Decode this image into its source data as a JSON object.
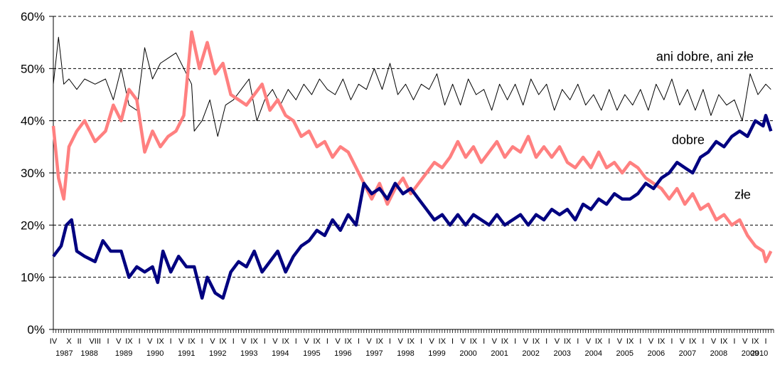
{
  "chart_data": {
    "type": "line",
    "title": "",
    "xlabel": "",
    "ylabel": "",
    "ylim": [
      0,
      60
    ],
    "yticks": [
      "0%",
      "10%",
      "20%",
      "30%",
      "40%",
      "50%",
      "60%"
    ],
    "grid": "horizontal-dashed",
    "x_month_labels": [
      "IV",
      "X",
      "II",
      "VIII",
      "I",
      "V",
      "IX",
      "I",
      "V",
      "IX",
      "I",
      "V",
      "IX",
      "I",
      "V",
      "IX",
      "I",
      "V",
      "IX",
      "I",
      "V",
      "IX",
      "I",
      "V",
      "IX",
      "I",
      "V",
      "IX",
      "I",
      "V",
      "IX",
      "I",
      "V",
      "IX",
      "I",
      "V",
      "IX",
      "I",
      "V",
      "IX",
      "I",
      "V",
      "IX",
      "I",
      "V",
      "IX",
      "I",
      "V",
      "IX",
      "I",
      "V",
      "IX",
      "I",
      "V",
      "IX",
      "I",
      "V",
      "IX",
      "I",
      "V",
      "IX",
      "I",
      "V",
      "IX",
      "I",
      "V",
      "IX",
      "I",
      "V",
      "IX",
      "I"
    ],
    "x_year_labels": [
      "1987",
      "1988",
      "1989",
      "1990",
      "1991",
      "1992",
      "1993",
      "1994",
      "1995",
      "1996",
      "1997",
      "1998",
      "1999",
      "2000",
      "2001",
      "2002",
      "2003",
      "2004",
      "2005",
      "2006",
      "2007",
      "2008",
      "2009",
      "2010"
    ],
    "series": [
      {
        "name": "ani dobre, ani złe",
        "color": "#000000",
        "points": [
          [
            "1987-04",
            47
          ],
          [
            "1987-06",
            56
          ],
          [
            "1987-08",
            47
          ],
          [
            "1987-10",
            48
          ],
          [
            "1988-01",
            46
          ],
          [
            "1988-04",
            48
          ],
          [
            "1988-08",
            47
          ],
          [
            "1988-12",
            48
          ],
          [
            "1989-03",
            44
          ],
          [
            "1989-06",
            50
          ],
          [
            "1989-09",
            43
          ],
          [
            "1989-12",
            42
          ],
          [
            "1990-03",
            54
          ],
          [
            "1990-06",
            48
          ],
          [
            "1990-09",
            51
          ],
          [
            "1990-12",
            52
          ],
          [
            "1991-03",
            53
          ],
          [
            "1991-06",
            50
          ],
          [
            "1991-09",
            47
          ],
          [
            "1991-10",
            38
          ],
          [
            "1992-01",
            40
          ],
          [
            "1992-04",
            44
          ],
          [
            "1992-07",
            37
          ],
          [
            "1992-10",
            43
          ],
          [
            "1993-01",
            44
          ],
          [
            "1993-04",
            46
          ],
          [
            "1993-07",
            48
          ],
          [
            "1993-10",
            40
          ],
          [
            "1994-01",
            44
          ],
          [
            "1994-04",
            46
          ],
          [
            "1994-07",
            43
          ],
          [
            "1994-10",
            46
          ],
          [
            "1995-01",
            44
          ],
          [
            "1995-04",
            47
          ],
          [
            "1995-07",
            45
          ],
          [
            "1995-10",
            48
          ],
          [
            "1996-01",
            46
          ],
          [
            "1996-04",
            45
          ],
          [
            "1996-07",
            48
          ],
          [
            "1996-10",
            44
          ],
          [
            "1997-01",
            47
          ],
          [
            "1997-04",
            46
          ],
          [
            "1997-07",
            50
          ],
          [
            "1997-10",
            46
          ],
          [
            "1998-01",
            51
          ],
          [
            "1998-04",
            45
          ],
          [
            "1998-07",
            47
          ],
          [
            "1998-10",
            44
          ],
          [
            "1999-01",
            47
          ],
          [
            "1999-04",
            46
          ],
          [
            "1999-07",
            49
          ],
          [
            "1999-10",
            43
          ],
          [
            "2000-01",
            47
          ],
          [
            "2000-04",
            43
          ],
          [
            "2000-07",
            48
          ],
          [
            "2000-10",
            45
          ],
          [
            "2001-01",
            46
          ],
          [
            "2001-04",
            42
          ],
          [
            "2001-07",
            47
          ],
          [
            "2001-10",
            44
          ],
          [
            "2002-01",
            47
          ],
          [
            "2002-04",
            43
          ],
          [
            "2002-07",
            48
          ],
          [
            "2002-10",
            45
          ],
          [
            "2003-01",
            47
          ],
          [
            "2003-04",
            42
          ],
          [
            "2003-07",
            46
          ],
          [
            "2003-10",
            44
          ],
          [
            "2004-01",
            47
          ],
          [
            "2004-04",
            43
          ],
          [
            "2004-07",
            45
          ],
          [
            "2004-10",
            42
          ],
          [
            "2005-01",
            46
          ],
          [
            "2005-04",
            42
          ],
          [
            "2005-07",
            45
          ],
          [
            "2005-10",
            43
          ],
          [
            "2006-01",
            46
          ],
          [
            "2006-04",
            42
          ],
          [
            "2006-07",
            47
          ],
          [
            "2006-10",
            44
          ],
          [
            "2007-01",
            48
          ],
          [
            "2007-04",
            43
          ],
          [
            "2007-07",
            46
          ],
          [
            "2007-10",
            42
          ],
          [
            "2008-01",
            46
          ],
          [
            "2008-04",
            41
          ],
          [
            "2008-07",
            45
          ],
          [
            "2008-10",
            43
          ],
          [
            "2009-01",
            44
          ],
          [
            "2009-04",
            40
          ],
          [
            "2009-07",
            49
          ],
          [
            "2009-10",
            45
          ],
          [
            "2010-01",
            47
          ],
          [
            "2010-03",
            46
          ]
        ]
      },
      {
        "name": "dobre",
        "color": "#000080",
        "points": [
          [
            "1987-04",
            14
          ],
          [
            "1987-07",
            16
          ],
          [
            "1987-09",
            20
          ],
          [
            "1987-11",
            21
          ],
          [
            "1988-01",
            15
          ],
          [
            "1988-04",
            14
          ],
          [
            "1988-08",
            13
          ],
          [
            "1988-11",
            17
          ],
          [
            "1989-02",
            15
          ],
          [
            "1989-06",
            15
          ],
          [
            "1989-09",
            10
          ],
          [
            "1989-12",
            12
          ],
          [
            "1990-03",
            11
          ],
          [
            "1990-06",
            12
          ],
          [
            "1990-08",
            9
          ],
          [
            "1990-10",
            15
          ],
          [
            "1991-01",
            11
          ],
          [
            "1991-04",
            14
          ],
          [
            "1991-07",
            12
          ],
          [
            "1991-10",
            12
          ],
          [
            "1992-01",
            6
          ],
          [
            "1992-03",
            10
          ],
          [
            "1992-06",
            7
          ],
          [
            "1992-09",
            6
          ],
          [
            "1992-12",
            11
          ],
          [
            "1993-03",
            13
          ],
          [
            "1993-06",
            12
          ],
          [
            "1993-09",
            15
          ],
          [
            "1993-12",
            11
          ],
          [
            "1994-03",
            13
          ],
          [
            "1994-06",
            15
          ],
          [
            "1994-09",
            11
          ],
          [
            "1994-12",
            14
          ],
          [
            "1995-03",
            16
          ],
          [
            "1995-06",
            17
          ],
          [
            "1995-09",
            19
          ],
          [
            "1995-12",
            18
          ],
          [
            "1996-03",
            21
          ],
          [
            "1996-06",
            19
          ],
          [
            "1996-09",
            22
          ],
          [
            "1996-12",
            20
          ],
          [
            "1997-03",
            28
          ],
          [
            "1997-06",
            26
          ],
          [
            "1997-09",
            27
          ],
          [
            "1997-12",
            25
          ],
          [
            "1998-03",
            28
          ],
          [
            "1998-06",
            26
          ],
          [
            "1998-09",
            27
          ],
          [
            "1998-12",
            25
          ],
          [
            "1999-03",
            23
          ],
          [
            "1999-06",
            21
          ],
          [
            "1999-09",
            22
          ],
          [
            "1999-12",
            20
          ],
          [
            "2000-03",
            22
          ],
          [
            "2000-06",
            20
          ],
          [
            "2000-09",
            22
          ],
          [
            "2000-12",
            21
          ],
          [
            "2001-03",
            20
          ],
          [
            "2001-06",
            22
          ],
          [
            "2001-09",
            20
          ],
          [
            "2001-12",
            21
          ],
          [
            "2002-03",
            22
          ],
          [
            "2002-06",
            20
          ],
          [
            "2002-09",
            22
          ],
          [
            "2002-12",
            21
          ],
          [
            "2003-03",
            23
          ],
          [
            "2003-06",
            22
          ],
          [
            "2003-09",
            23
          ],
          [
            "2003-12",
            21
          ],
          [
            "2004-03",
            24
          ],
          [
            "2004-06",
            23
          ],
          [
            "2004-09",
            25
          ],
          [
            "2004-12",
            24
          ],
          [
            "2005-03",
            26
          ],
          [
            "2005-06",
            25
          ],
          [
            "2005-09",
            25
          ],
          [
            "2005-12",
            26
          ],
          [
            "2006-03",
            28
          ],
          [
            "2006-06",
            27
          ],
          [
            "2006-09",
            29
          ],
          [
            "2006-12",
            30
          ],
          [
            "2007-03",
            32
          ],
          [
            "2007-06",
            31
          ],
          [
            "2007-09",
            30
          ],
          [
            "2007-12",
            33
          ],
          [
            "2008-03",
            34
          ],
          [
            "2008-06",
            36
          ],
          [
            "2008-09",
            35
          ],
          [
            "2008-12",
            37
          ],
          [
            "2009-03",
            38
          ],
          [
            "2009-06",
            37
          ],
          [
            "2009-09",
            40
          ],
          [
            "2009-12",
            39
          ],
          [
            "2010-01",
            41
          ],
          [
            "2010-03",
            38
          ]
        ]
      },
      {
        "name": "złe",
        "color": "#ff8080",
        "points": [
          [
            "1987-04",
            39
          ],
          [
            "1987-06",
            29
          ],
          [
            "1987-08",
            25
          ],
          [
            "1987-10",
            35
          ],
          [
            "1988-01",
            38
          ],
          [
            "1988-04",
            40
          ],
          [
            "1988-08",
            36
          ],
          [
            "1988-12",
            38
          ],
          [
            "1989-03",
            43
          ],
          [
            "1989-06",
            40
          ],
          [
            "1989-09",
            46
          ],
          [
            "1989-12",
            44
          ],
          [
            "1990-03",
            34
          ],
          [
            "1990-06",
            38
          ],
          [
            "1990-09",
            35
          ],
          [
            "1990-12",
            37
          ],
          [
            "1991-03",
            38
          ],
          [
            "1991-06",
            41
          ],
          [
            "1991-09",
            57
          ],
          [
            "1991-12",
            50
          ],
          [
            "1992-03",
            55
          ],
          [
            "1992-06",
            49
          ],
          [
            "1992-09",
            51
          ],
          [
            "1992-12",
            45
          ],
          [
            "1993-03",
            44
          ],
          [
            "1993-06",
            43
          ],
          [
            "1993-09",
            45
          ],
          [
            "1993-12",
            47
          ],
          [
            "1994-03",
            42
          ],
          [
            "1994-06",
            44
          ],
          [
            "1994-09",
            41
          ],
          [
            "1994-12",
            40
          ],
          [
            "1995-03",
            37
          ],
          [
            "1995-06",
            38
          ],
          [
            "1995-09",
            35
          ],
          [
            "1995-12",
            36
          ],
          [
            "1996-03",
            33
          ],
          [
            "1996-06",
            35
          ],
          [
            "1996-09",
            34
          ],
          [
            "1996-12",
            31
          ],
          [
            "1997-03",
            28
          ],
          [
            "1997-06",
            25
          ],
          [
            "1997-09",
            28
          ],
          [
            "1997-12",
            24
          ],
          [
            "1998-03",
            27
          ],
          [
            "1998-06",
            29
          ],
          [
            "1998-09",
            26
          ],
          [
            "1998-12",
            28
          ],
          [
            "1999-03",
            30
          ],
          [
            "1999-06",
            32
          ],
          [
            "1999-09",
            31
          ],
          [
            "1999-12",
            33
          ],
          [
            "2000-03",
            36
          ],
          [
            "2000-06",
            33
          ],
          [
            "2000-09",
            35
          ],
          [
            "2000-12",
            32
          ],
          [
            "2001-03",
            34
          ],
          [
            "2001-06",
            36
          ],
          [
            "2001-09",
            33
          ],
          [
            "2001-12",
            35
          ],
          [
            "2002-03",
            34
          ],
          [
            "2002-06",
            37
          ],
          [
            "2002-09",
            33
          ],
          [
            "2002-12",
            35
          ],
          [
            "2003-03",
            33
          ],
          [
            "2003-06",
            35
          ],
          [
            "2003-09",
            32
          ],
          [
            "2003-12",
            31
          ],
          [
            "2004-03",
            33
          ],
          [
            "2004-06",
            31
          ],
          [
            "2004-09",
            34
          ],
          [
            "2004-12",
            31
          ],
          [
            "2005-03",
            32
          ],
          [
            "2005-06",
            30
          ],
          [
            "2005-09",
            32
          ],
          [
            "2005-12",
            31
          ],
          [
            "2006-03",
            29
          ],
          [
            "2006-06",
            28
          ],
          [
            "2006-09",
            27
          ],
          [
            "2006-12",
            25
          ],
          [
            "2007-03",
            27
          ],
          [
            "2007-06",
            24
          ],
          [
            "2007-09",
            26
          ],
          [
            "2007-12",
            23
          ],
          [
            "2008-03",
            24
          ],
          [
            "2008-06",
            21
          ],
          [
            "2008-09",
            22
          ],
          [
            "2008-12",
            20
          ],
          [
            "2009-03",
            21
          ],
          [
            "2009-06",
            18
          ],
          [
            "2009-09",
            16
          ],
          [
            "2009-12",
            15
          ],
          [
            "2010-01",
            13
          ],
          [
            "2010-03",
            15
          ]
        ]
      }
    ],
    "series_labels": [
      {
        "text": "ani dobre, ani złe",
        "x": "2006-07",
        "y": 51.5
      },
      {
        "text": "dobre",
        "x": "2007-01",
        "y": 35.5
      },
      {
        "text": "złe",
        "x": "2009-01",
        "y": 25
      }
    ]
  }
}
